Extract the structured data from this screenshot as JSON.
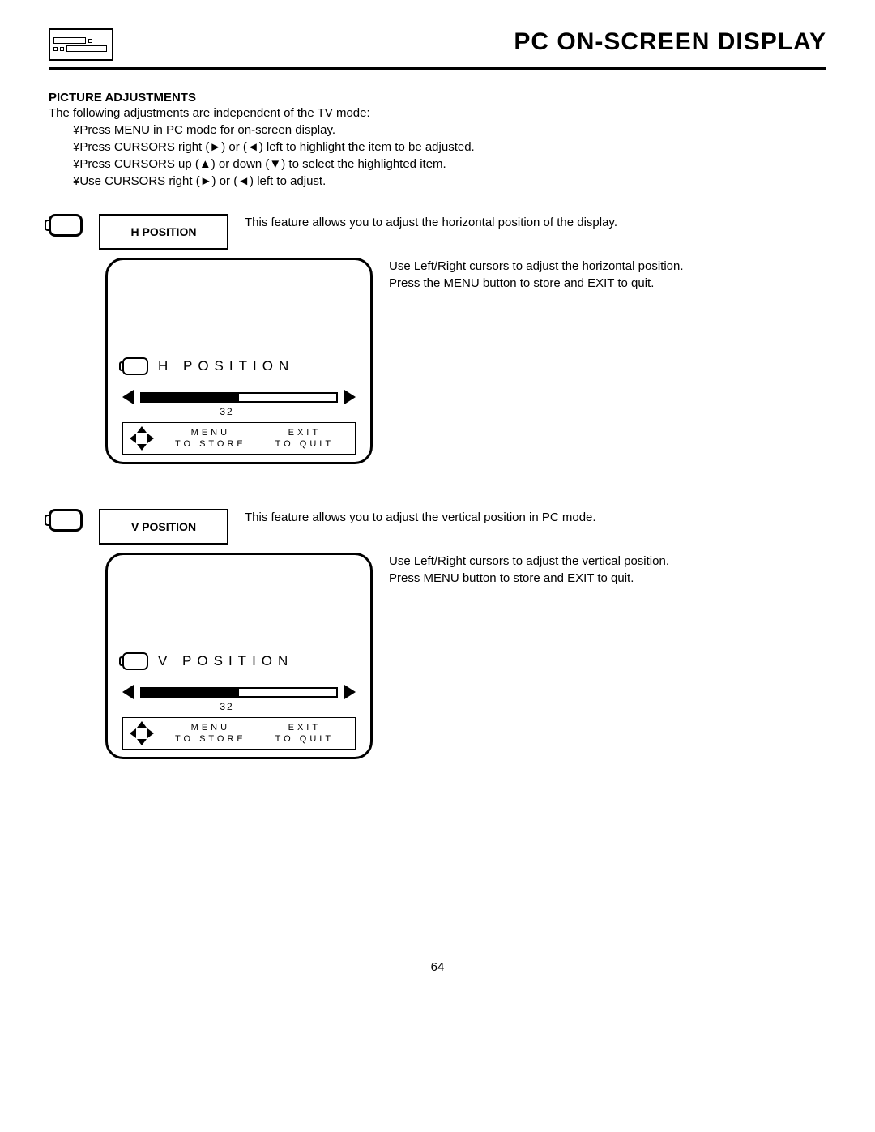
{
  "header": {
    "title": "PC ON-SCREEN DISPLAY"
  },
  "section": {
    "heading": "PICTURE ADJUSTMENTS",
    "intro": "The following adjustments are independent of the TV mode:",
    "bullets": [
      "¥Press MENU in PC mode for on-screen display.",
      "¥Press CURSORS right (►) or (◄) left to highlight the item to be adjusted.",
      "¥Press CURSORS up (▲) or down (▼) to select the highlighted item.",
      "¥Use CURSORS right (►) or (◄) left to adjust."
    ]
  },
  "features": [
    {
      "label": "H POSITION",
      "desc": "This feature allows you to adjust the horizontal position of the display.",
      "side1": "Use Left/Right cursors to adjust the horizontal position.",
      "side2": "Press the MENU button to store and EXIT to quit.",
      "osd_title": "H  POSITION",
      "value": "32",
      "fill_pct": 50,
      "menu": "MENU",
      "tostore": "TO STORE",
      "exit": "EXIT",
      "toquit": "TO QUIT"
    },
    {
      "label": "V POSITION",
      "desc": "This feature allows you to adjust the vertical position in PC mode.",
      "side1": "Use Left/Right cursors to adjust the vertical position.",
      "side2": "Press MENU button to store and EXIT to quit.",
      "osd_title": "V  POSITION",
      "value": "32",
      "fill_pct": 50,
      "menu": "MENU",
      "tostore": "TO STORE",
      "exit": "EXIT",
      "toquit": "TO QUIT"
    }
  ],
  "page_number": "64"
}
